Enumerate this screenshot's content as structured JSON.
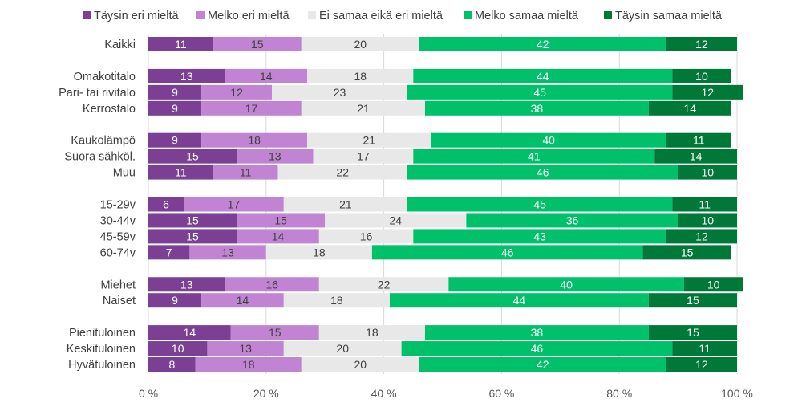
{
  "chart_data": {
    "type": "bar",
    "orientation": "horizontal",
    "stacked": true,
    "title": "",
    "xlabel": "",
    "ylabel": "",
    "xlim": [
      0,
      100
    ],
    "x_ticks": [
      "0 %",
      "20 %",
      "40 %",
      "60 %",
      "80 %",
      "100 %"
    ],
    "grid": true,
    "legend_position": "top",
    "categories": [
      "Kaikki",
      "Omakotitalo",
      "Pari- tai rivitalo",
      "Kerrostalo",
      "Kaukolämpö",
      "Suora sähköl.",
      "Muu",
      "15-29v",
      "30-44v",
      "45-59v",
      "60-74v",
      "Miehet",
      "Naiset",
      "Pienituloinen",
      "Keskituloinen",
      "Hyvätuloinen"
    ],
    "groups": [
      1,
      3,
      3,
      4,
      2,
      3
    ],
    "series": [
      {
        "name": "Täysin eri mieltä",
        "color": "#7b3f94",
        "label_color": "#ffffff",
        "values": [
          11,
          13,
          9,
          9,
          9,
          15,
          11,
          6,
          15,
          15,
          7,
          13,
          9,
          14,
          10,
          8
        ]
      },
      {
        "name": "Melko eri mieltä",
        "color": "#c184d3",
        "label_color": "#404040",
        "values": [
          15,
          14,
          12,
          17,
          18,
          13,
          11,
          17,
          15,
          14,
          13,
          16,
          14,
          15,
          13,
          18
        ]
      },
      {
        "name": "Ei samaa eikä eri mieltä",
        "color": "#e8e8e8",
        "label_color": "#404040",
        "values": [
          20,
          18,
          23,
          21,
          21,
          17,
          22,
          21,
          24,
          16,
          18,
          22,
          18,
          18,
          20,
          20
        ]
      },
      {
        "name": "Melko samaa mieltä",
        "color": "#00c16a",
        "label_color": "#ffffff",
        "values": [
          42,
          44,
          45,
          38,
          40,
          41,
          46,
          45,
          36,
          43,
          46,
          40,
          44,
          38,
          46,
          42
        ]
      },
      {
        "name": "Täysin samaa mieltä",
        "color": "#007838",
        "label_color": "#ffffff",
        "values": [
          12,
          10,
          12,
          14,
          11,
          14,
          10,
          11,
          10,
          12,
          15,
          10,
          15,
          15,
          11,
          12
        ]
      }
    ]
  }
}
